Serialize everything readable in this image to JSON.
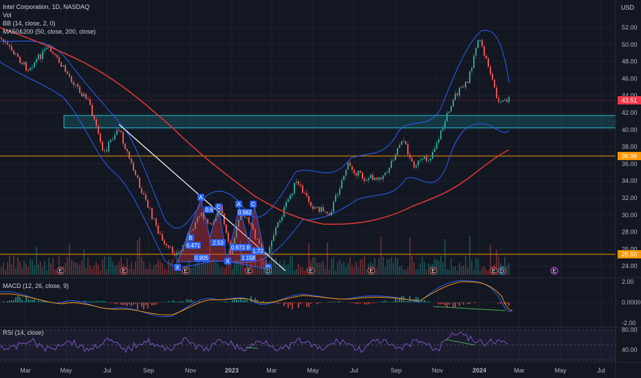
{
  "header": {
    "symbol": "Intel Corporation, 1D, NASDAQ",
    "volume_label": "Vol",
    "bb_label": "BB (14, close, 2, 0)",
    "ma_label": "MA50&200 (50, close, 200, close)",
    "currency": "USD"
  },
  "macd": {
    "label": "MACD (12, 26, close, 9)",
    "ticks": [
      "2.00",
      "0.0000",
      "-2.00"
    ]
  },
  "rsi": {
    "label": "RSI (14, close)",
    "ticks": [
      "80.00",
      "40.00"
    ]
  },
  "price_axis": {
    "ticks": [
      "52.00",
      "50.00",
      "48.00",
      "46.00",
      "44.00",
      "42.00",
      "40.00",
      "38.00",
      "36.00",
      "34.00",
      "32.00",
      "30.00",
      "28.00",
      "26.00",
      "24.00"
    ]
  },
  "price_tags": {
    "last": {
      "value": "43.51",
      "color": "#f23645"
    },
    "resistance": {
      "value": "36.96",
      "color": "#ff9800"
    },
    "support": {
      "value": "25.50",
      "color": "#ff9800"
    }
  },
  "time_axis": {
    "labels": [
      "Mar",
      "May",
      "Jul",
      "Sep",
      "Nov",
      "2023",
      "Mar",
      "May",
      "Jul",
      "Sep",
      "Nov",
      "2024",
      "Mar",
      "May",
      "Jul"
    ]
  },
  "pattern_labels": {
    "p1": [
      "A",
      "C",
      "B",
      "X",
      "D"
    ],
    "p1_ratios": [
      "0.6",
      "0.471",
      "2.53",
      "0.905"
    ],
    "p2": [
      "A",
      "C",
      "B",
      "X",
      "D"
    ],
    "p2_ratios": [
      "0.982",
      "0.673",
      "1.72",
      "1.158"
    ]
  },
  "event_markers": {
    "earnings": "E",
    "dividend": "D"
  },
  "colors": {
    "background": "#131722",
    "ma200": "#e53935",
    "bb": "#2962ff",
    "up": "#26a69a",
    "down": "#ef5350",
    "zone": "#26c6da",
    "pattern": "#2962ff"
  }
}
